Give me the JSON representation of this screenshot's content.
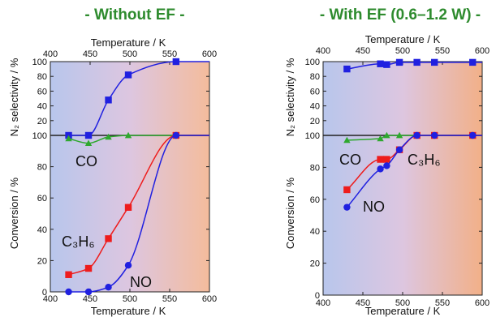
{
  "charts": [
    {
      "id": "left",
      "panel_title": "- Without EF -",
      "top_axis_label": "Temperature / K",
      "bottom_axis_label": "Temperature / K",
      "top_ylabel": "N₂ selectivity / %",
      "bottom_ylabel": "Conversion / %",
      "x_ticks": [
        "400",
        "450",
        "500",
        "550",
        "600"
      ],
      "top_y_ticks": [
        "0",
        "20",
        "40",
        "60",
        "80",
        "100"
      ],
      "bottom_y_ticks": [
        "0",
        "20",
        "40",
        "60",
        "80",
        "100"
      ],
      "labels": {
        "co": "CO",
        "c3h6": "C₃H₆",
        "no": "NO"
      }
    },
    {
      "id": "right",
      "panel_title": "- With EF (0.6–1.2 W) -",
      "top_axis_label": "Temperature / K",
      "bottom_axis_label": "Temperature / K",
      "top_ylabel": "N₂ selectivity / %",
      "bottom_ylabel": "Conversion / %",
      "x_ticks": [
        "400",
        "450",
        "500",
        "550",
        "600"
      ],
      "top_y_ticks": [
        "0",
        "20",
        "40",
        "60",
        "80",
        "100"
      ],
      "bottom_y_ticks": [
        "0",
        "20",
        "40",
        "60",
        "80",
        "100"
      ],
      "labels": {
        "co": "CO",
        "c3h6": "C₃H₆",
        "no": "NO"
      }
    }
  ],
  "colors": {
    "title": "#2e8b2e",
    "no": "#2020e0",
    "c3h6": "#ee1c1c",
    "co": "#2ea82e",
    "n2_selectivity": "#2020e0",
    "background_left": "#bcc8ea",
    "background_right": "#f0b898"
  },
  "chart_data": [
    {
      "type": "line",
      "panel": "- Without EF -",
      "xlabel": "Temperature / K",
      "xlim": [
        400,
        600
      ],
      "subplots": [
        {
          "position": "top",
          "ylabel": "N₂ selectivity / %",
          "ylim": [
            0,
            100
          ],
          "series": [
            {
              "name": "",
              "marker": "square",
              "color": "#2020e0",
              "x": [
                423,
                448,
                473,
                498,
                558
              ],
              "y": [
                0,
                0,
                48,
                82,
                100
              ]
            }
          ]
        },
        {
          "position": "bottom",
          "ylabel": "Conversion / %",
          "ylim": [
            0,
            100
          ],
          "series": [
            {
              "name": "CO",
              "marker": "triangle",
              "color": "#2ea82e",
              "x": [
                423,
                448,
                473,
                498,
                558
              ],
              "y": [
                98,
                95,
                99,
                100,
                100
              ]
            },
            {
              "name": "C₃H₆",
              "marker": "square",
              "color": "#ee1c1c",
              "x": [
                423,
                448,
                473,
                498,
                558
              ],
              "y": [
                11,
                15,
                34,
                54,
                100
              ]
            },
            {
              "name": "NO",
              "marker": "circle",
              "color": "#2020e0",
              "x": [
                423,
                448,
                473,
                498,
                558
              ],
              "y": [
                0,
                0,
                3,
                17,
                100
              ]
            }
          ]
        }
      ]
    },
    {
      "type": "line",
      "panel": "- With EF (0.6–1.2 W) -",
      "xlabel": "Temperature / K",
      "xlim": [
        400,
        600
      ],
      "subplots": [
        {
          "position": "top",
          "ylabel": "N₂ selectivity / %",
          "ylim": [
            0,
            100
          ],
          "series": [
            {
              "name": "",
              "marker": "square",
              "color": "#2020e0",
              "x": [
                430,
                472,
                480,
                496,
                518,
                540,
                588
              ],
              "y": [
                90,
                97,
                96,
                99,
                99,
                99,
                99
              ]
            }
          ]
        },
        {
          "position": "bottom",
          "ylabel": "Conversion / %",
          "ylim": [
            0,
            100
          ],
          "series": [
            {
              "name": "CO",
              "marker": "triangle",
              "color": "#2ea82e",
              "x": [
                430,
                472,
                480,
                496,
                518,
                540,
                588
              ],
              "y": [
                97,
                98,
                100,
                100,
                100,
                100,
                100
              ]
            },
            {
              "name": "C₃H₆",
              "marker": "square",
              "color": "#ee1c1c",
              "x": [
                430,
                472,
                480,
                496,
                518,
                540,
                588
              ],
              "y": [
                66,
                85,
                85,
                91,
                100,
                100,
                100
              ]
            },
            {
              "name": "NO",
              "marker": "circle",
              "color": "#2020e0",
              "x": [
                430,
                472,
                480,
                496,
                518,
                540,
                588
              ],
              "y": [
                55,
                79,
                81,
                91,
                100,
                100,
                100
              ]
            }
          ]
        }
      ]
    }
  ]
}
